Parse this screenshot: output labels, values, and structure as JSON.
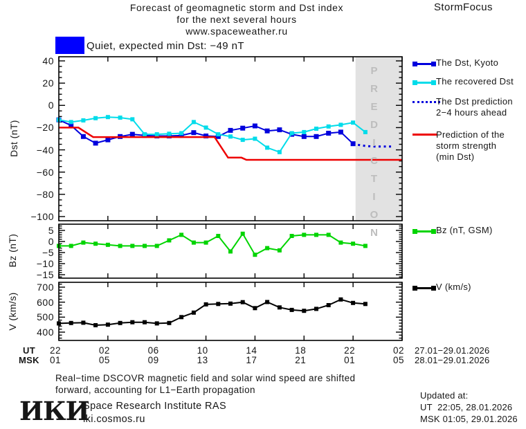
{
  "header": {
    "title_lines": [
      "Forecast of geomagnetic storm and Dst index",
      "for the next several hours",
      "www.spaceweather.ru"
    ],
    "brand": "StormFocus"
  },
  "status": {
    "label": "Quiet, expected min Dst: −49 nT",
    "swatch_color": "#0000ff"
  },
  "colors": {
    "region_fill": "#e2e2e2",
    "watermark": "#bdbdbd",
    "axis": "#000000"
  },
  "xaxis": {
    "ut_label": "UT",
    "msk_label": "MSK",
    "ut_ticks": [
      "22",
      "02",
      "06",
      "10",
      "14",
      "18",
      "22",
      "02"
    ],
    "msk_ticks": [
      "01",
      "05",
      "09",
      "13",
      "17",
      "21",
      "01",
      "05"
    ],
    "ut_date_range": "27.01−29.01.2026",
    "msk_date_range": "28.01−29.01.2026"
  },
  "chart_data": [
    {
      "type": "line",
      "ylabel": "Dst (nT)",
      "ylim": [
        44,
        -104
      ],
      "yticks": [
        "40",
        "20",
        "0",
        "−20",
        "−40",
        "−60",
        "−80",
        "−100"
      ],
      "ytick_minor": 5,
      "x_span_hours": 28,
      "x_major_step_hours": 4,
      "x_start": "22:00 UT 27.01.2026",
      "prediction_region": {
        "start_hour": 24.2,
        "label": "PREDICTION"
      },
      "series": [
        {
          "name": "The Dst, Kyoto",
          "color": "#0000dd",
          "marker": "square",
          "marker_size": 7,
          "width": 2,
          "x": [
            0,
            1,
            2,
            3,
            4,
            5,
            6,
            7,
            8,
            9,
            10,
            11,
            12,
            13,
            14,
            15,
            16,
            17,
            18,
            19,
            20,
            21,
            22,
            23,
            24
          ],
          "values": [
            -13,
            -18,
            -28,
            -34,
            -31,
            -28,
            -26,
            -27,
            -27.5,
            -27.5,
            -27,
            -24.5,
            -27.5,
            -28,
            -22.5,
            -20.5,
            -18.5,
            -23,
            -22,
            -26,
            -28,
            -28,
            -25,
            -24,
            -34.5
          ]
        },
        {
          "name": "The recovered Dst",
          "color": "#00dcea",
          "marker": "square",
          "marker_size": 6,
          "width": 2,
          "x": [
            0,
            1,
            2,
            3,
            4,
            5,
            6,
            7,
            8,
            9,
            10,
            11,
            12,
            13,
            14,
            15,
            16,
            17,
            18,
            19,
            20,
            21,
            22,
            23,
            24,
            25
          ],
          "values": [
            -13,
            -15,
            -13.5,
            -11.5,
            -10.5,
            -11,
            -12.5,
            -26,
            -26,
            -25.5,
            -25,
            -15,
            -20,
            -26,
            -28,
            -31,
            -30,
            -38,
            -42,
            -25,
            -24,
            -21,
            -19,
            -17.5,
            -15.5,
            -24
          ]
        },
        {
          "name": "The Dst prediction 2−4 hours ahead",
          "color": "#0000dd",
          "line": "dotted",
          "marker": "none",
          "width": 3,
          "x": [
            24.4,
            25,
            25.6,
            26.2,
            26.8,
            27.3
          ],
          "values": [
            -35.5,
            -36.5,
            -37,
            -37,
            -37,
            -37
          ]
        },
        {
          "name": "Prediction of the storm strength (min Dst)",
          "color": "#ee0000",
          "marker": "none",
          "width": 2.5,
          "x": [
            0,
            1.6,
            2.8,
            12.7,
            13.8,
            14.9,
            15.3,
            28
          ],
          "values": [
            -20,
            -20,
            -28.5,
            -28.5,
            -47,
            -47,
            -49,
            -49
          ]
        }
      ]
    },
    {
      "type": "line",
      "ylabel": "Bz (nT)",
      "ylim": [
        7.8,
        -16.6
      ],
      "yticks": [
        "5",
        "0",
        "−5",
        "−10",
        "−15"
      ],
      "ytick_minor": 1,
      "series": [
        {
          "name": "Bz (nT, GSM)",
          "color": "#00d400",
          "marker": "square",
          "marker_size": 6,
          "width": 2,
          "x": [
            0,
            1,
            2,
            3,
            4,
            5,
            6,
            7,
            8,
            9,
            10,
            11,
            12,
            13,
            14,
            15,
            16,
            17,
            18,
            19,
            20,
            21,
            22,
            23,
            24,
            25
          ],
          "values": [
            -2,
            -2,
            -0.5,
            -1,
            -1.5,
            -2,
            -2,
            -2,
            -2,
            0.5,
            3,
            -0.5,
            -0.5,
            2.5,
            -4.5,
            3.5,
            -6,
            -3,
            -4,
            2.5,
            3,
            3,
            3,
            -0.5,
            -1,
            -2
          ]
        }
      ]
    },
    {
      "type": "line",
      "ylabel": "V (km/s)",
      "ylim": [
        732,
        345
      ],
      "yticks": [
        "700",
        "600",
        "500",
        "400"
      ],
      "ytick_minor": 20,
      "series": [
        {
          "name": "V (km/s)",
          "color": "#000000",
          "marker": "square",
          "marker_size": 6,
          "width": 2,
          "x": [
            0,
            1,
            2,
            3,
            4,
            5,
            6,
            7,
            8,
            9,
            10,
            11,
            12,
            13,
            14,
            15,
            16,
            17,
            18,
            19,
            20,
            21,
            22,
            23,
            24,
            25
          ],
          "values": [
            458,
            461,
            463,
            446,
            450,
            461,
            466,
            466,
            458,
            461,
            500,
            530,
            585,
            588,
            590,
            600,
            560,
            601,
            565,
            548,
            542,
            555,
            580,
            618,
            595,
            588
          ]
        }
      ]
    }
  ],
  "legend_main": [
    {
      "lines": [
        "The Dst, Kyoto"
      ]
    },
    {
      "lines": [
        "The recovered Dst"
      ]
    },
    {
      "lines": [
        "The Dst prediction",
        "2−4 hours ahead"
      ]
    },
    {
      "lines": [
        "Prediction of the",
        "storm strength",
        "(min Dst)"
      ]
    }
  ],
  "legend_bz": "Bz (nT, GSM)",
  "legend_v": "V (km/s)",
  "footer": {
    "note_lines": [
      "Real−time DSCOVR magnetic field and solar wind speed are shifted",
      "forward, accounting for L1−Earth propagation"
    ],
    "logo": "ИКИ",
    "institute": "Space Research Institute RAS",
    "website": "iki.cosmos.ru",
    "updated_label": "Updated at:",
    "updated_ut": "UT  22:05, 28.01.2026",
    "updated_msk": "MSK 01:05, 29.01.2026"
  }
}
